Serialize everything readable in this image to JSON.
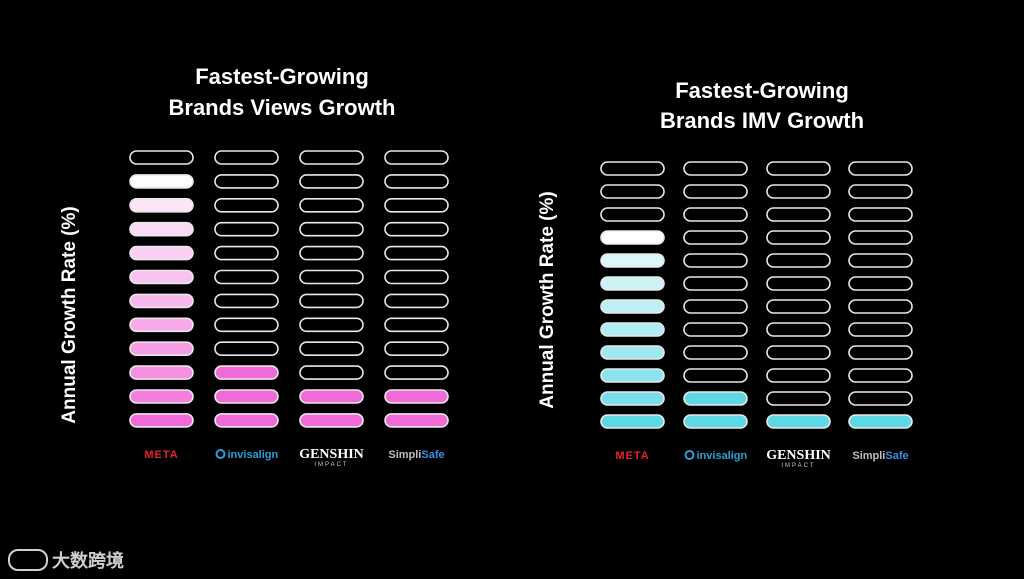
{
  "chart_data": [
    {
      "type": "bar",
      "title_lines": [
        "Fastest-Growing",
        "Brands Views Growth"
      ],
      "ylabel": "Annual Growth Rate (%)",
      "categories": [
        "META",
        "invisalign",
        "GENSHIN IMPACT",
        "SimpliSafe"
      ],
      "values": [
        11,
        3,
        2,
        2
      ],
      "max_segments": 12,
      "colors": {
        "fill": "#f06ad8",
        "fill_light": "#fdf0fb",
        "top": "#ffffff"
      }
    },
    {
      "type": "bar",
      "title_lines": [
        "Fastest-Growing",
        "Brands IMV Growth"
      ],
      "ylabel": "Annual Growth Rate (%)",
      "categories": [
        "META",
        "invisalign",
        "GENSHIN IMPACT",
        "SimpliSafe"
      ],
      "values": [
        9,
        2,
        1,
        1
      ],
      "max_segments": 12,
      "colors": {
        "fill": "#5fd8e6",
        "fill_light": "#eafafc",
        "top": "#ffffff"
      }
    }
  ],
  "watermark": "大数跨境"
}
